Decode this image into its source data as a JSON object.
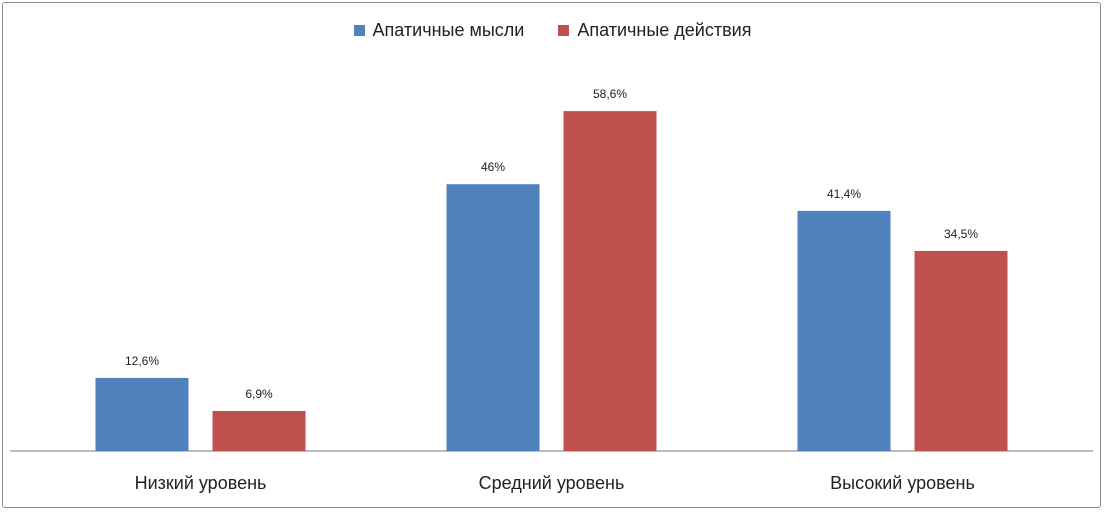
{
  "chart_data": {
    "type": "bar",
    "categories": [
      "Низкий уровень",
      "Средний уровень",
      "Высокий уровень"
    ],
    "series": [
      {
        "name": "Апатичные мысли",
        "values": [
          12.6,
          46,
          41.4
        ],
        "labels": [
          "12,6%",
          "46%",
          "41,4%"
        ],
        "color": "#4f81bd"
      },
      {
        "name": "Апатичные действия",
        "values": [
          6.9,
          58.6,
          34.5
        ],
        "labels": [
          "6,9%",
          "58,6%",
          "34,5%"
        ],
        "color": "#c0504d"
      }
    ],
    "ylim": [
      0,
      70
    ],
    "grid": false,
    "legend": "top-center",
    "axis_color": "#a6a6a6"
  }
}
